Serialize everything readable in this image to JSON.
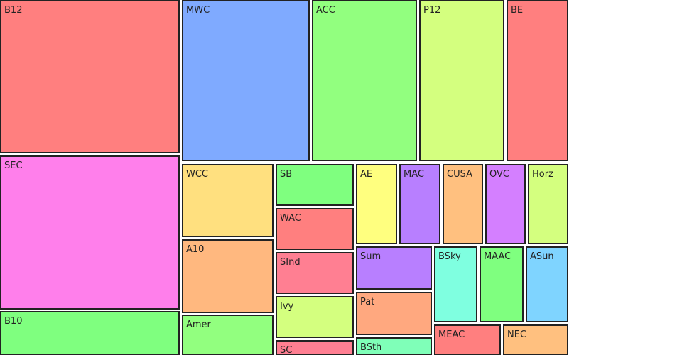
{
  "chart_data": {
    "type": "treemap",
    "title": "",
    "items": [
      {
        "label": "B12",
        "color": "#FF7F7F"
      },
      {
        "label": "SEC",
        "color": "#FF7FEB"
      },
      {
        "label": "B10",
        "color": "#7FFF7F"
      },
      {
        "label": "MWC",
        "color": "#7FAAFF"
      },
      {
        "label": "ACC",
        "color": "#92FF7F"
      },
      {
        "label": "P12",
        "color": "#D4FF7F"
      },
      {
        "label": "BE",
        "color": "#FF7F7F"
      },
      {
        "label": "WCC",
        "color": "#FFE07F"
      },
      {
        "label": "A10",
        "color": "#FFB87F"
      },
      {
        "label": "Amer",
        "color": "#92FF7F"
      },
      {
        "label": "SB",
        "color": "#7FFF7F"
      },
      {
        "label": "WAC",
        "color": "#FF7F7F"
      },
      {
        "label": "SInd",
        "color": "#FF7F92"
      },
      {
        "label": "Ivy",
        "color": "#D4FF7F"
      },
      {
        "label": "SC",
        "color": "#FF7F92"
      },
      {
        "label": "AE",
        "color": "#FFFF7F"
      },
      {
        "label": "MAC",
        "color": "#B87FFF"
      },
      {
        "label": "CUSA",
        "color": "#FFC07F"
      },
      {
        "label": "OVC",
        "color": "#D47FFF"
      },
      {
        "label": "Horz",
        "color": "#D4FF7F"
      },
      {
        "label": "Sum",
        "color": "#B87FFF"
      },
      {
        "label": "Pat",
        "color": "#FFA87F"
      },
      {
        "label": "BSth",
        "color": "#7FFFB8"
      },
      {
        "label": "BSky",
        "color": "#7FFFE0"
      },
      {
        "label": "MAAC",
        "color": "#7FFF7F"
      },
      {
        "label": "ASun",
        "color": "#7FD4FF"
      },
      {
        "label": "MEAC",
        "color": "#FF7F7F"
      },
      {
        "label": "NEC",
        "color": "#FFC07F"
      }
    ]
  }
}
